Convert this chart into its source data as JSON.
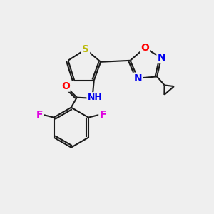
{
  "background_color": "#efefef",
  "bond_color": "#1a1a1a",
  "bond_width": 1.5,
  "atom_colors": {
    "S": "#b8b800",
    "O": "#ff0000",
    "N": "#0000ee",
    "F": "#e000e0",
    "C": "#1a1a1a",
    "H": "#1a1a1a"
  },
  "font_size": 8.5,
  "fig_width": 3.0,
  "fig_height": 3.0,
  "dpi": 100
}
